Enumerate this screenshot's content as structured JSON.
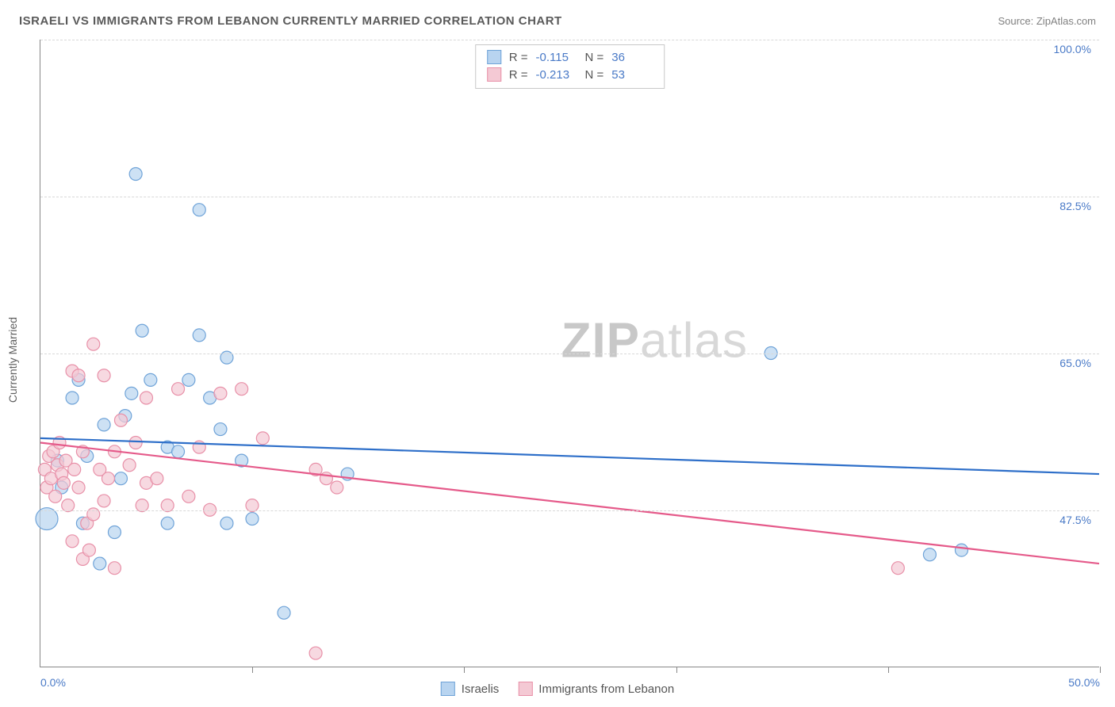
{
  "header": {
    "title": "ISRAELI VS IMMIGRANTS FROM LEBANON CURRENTLY MARRIED CORRELATION CHART",
    "source": "Source: ZipAtlas.com"
  },
  "watermark": {
    "prefix": "ZIP",
    "suffix": "atlas"
  },
  "chart": {
    "type": "scatter",
    "ylabel": "Currently Married",
    "background_color": "#ffffff",
    "grid_color": "#d8d8d8",
    "axis_color": "#888888",
    "tick_label_color": "#4a7ac7",
    "xlim": [
      0,
      50
    ],
    "ylim": [
      30,
      100
    ],
    "x_ticks": [
      0,
      10,
      20,
      30,
      40,
      50
    ],
    "x_tick_labels": [
      "0.0%",
      "",
      "",
      "",
      "",
      "50.0%"
    ],
    "y_gridlines": [
      47.5,
      65.0,
      82.5,
      100.0
    ],
    "y_tick_labels": [
      "47.5%",
      "65.0%",
      "82.5%",
      "100.0%"
    ],
    "series": [
      {
        "name": "Israelis",
        "color_fill": "#b8d4f0",
        "color_stroke": "#6fa3d8",
        "marker_radius": 8,
        "marker_opacity": 0.7,
        "R": "-0.115",
        "N": "36",
        "trendline": {
          "x1": 0,
          "y1": 55.5,
          "x2": 50,
          "y2": 51.5,
          "color": "#2e6fc9",
          "width": 2.2
        },
        "points": [
          {
            "x": 0.3,
            "y": 46.5,
            "r": 14
          },
          {
            "x": 0.8,
            "y": 53.0
          },
          {
            "x": 1.0,
            "y": 50.0
          },
          {
            "x": 1.5,
            "y": 60.0
          },
          {
            "x": 1.8,
            "y": 62.0
          },
          {
            "x": 2.0,
            "y": 46.0
          },
          {
            "x": 2.2,
            "y": 53.5
          },
          {
            "x": 2.8,
            "y": 41.5
          },
          {
            "x": 3.0,
            "y": 57.0
          },
          {
            "x": 3.5,
            "y": 45.0
          },
          {
            "x": 3.8,
            "y": 51.0
          },
          {
            "x": 4.0,
            "y": 58.0
          },
          {
            "x": 4.3,
            "y": 60.5
          },
          {
            "x": 4.5,
            "y": 85.0
          },
          {
            "x": 4.8,
            "y": 67.5
          },
          {
            "x": 5.2,
            "y": 62.0
          },
          {
            "x": 6.0,
            "y": 54.5
          },
          {
            "x": 6.0,
            "y": 46.0
          },
          {
            "x": 6.5,
            "y": 54.0
          },
          {
            "x": 7.0,
            "y": 62.0
          },
          {
            "x": 7.5,
            "y": 81.0
          },
          {
            "x": 7.5,
            "y": 67.0
          },
          {
            "x": 8.0,
            "y": 60.0
          },
          {
            "x": 8.5,
            "y": 56.5
          },
          {
            "x": 8.8,
            "y": 64.5
          },
          {
            "x": 8.8,
            "y": 46.0
          },
          {
            "x": 9.5,
            "y": 53.0
          },
          {
            "x": 10.0,
            "y": 46.5
          },
          {
            "x": 11.5,
            "y": 36.0
          },
          {
            "x": 14.5,
            "y": 51.5
          },
          {
            "x": 34.5,
            "y": 65.0
          },
          {
            "x": 42.0,
            "y": 42.5
          },
          {
            "x": 43.5,
            "y": 43.0
          }
        ]
      },
      {
        "name": "Immigrants from Lebanon",
        "color_fill": "#f4c9d4",
        "color_stroke": "#e890a8",
        "marker_radius": 8,
        "marker_opacity": 0.7,
        "R": "-0.213",
        "N": "53",
        "trendline": {
          "x1": 0,
          "y1": 55.0,
          "x2": 50,
          "y2": 41.5,
          "color": "#e55a8a",
          "width": 2.2
        },
        "points": [
          {
            "x": 0.2,
            "y": 52.0
          },
          {
            "x": 0.3,
            "y": 50.0
          },
          {
            "x": 0.4,
            "y": 53.5
          },
          {
            "x": 0.5,
            "y": 51.0
          },
          {
            "x": 0.6,
            "y": 54.0
          },
          {
            "x": 0.7,
            "y": 49.0
          },
          {
            "x": 0.8,
            "y": 52.5
          },
          {
            "x": 0.9,
            "y": 55.0
          },
          {
            "x": 1.0,
            "y": 51.5
          },
          {
            "x": 1.1,
            "y": 50.5
          },
          {
            "x": 1.2,
            "y": 53.0
          },
          {
            "x": 1.3,
            "y": 48.0
          },
          {
            "x": 1.5,
            "y": 63.0
          },
          {
            "x": 1.5,
            "y": 44.0
          },
          {
            "x": 1.6,
            "y": 52.0
          },
          {
            "x": 1.8,
            "y": 62.5
          },
          {
            "x": 1.8,
            "y": 50.0
          },
          {
            "x": 2.0,
            "y": 42.0
          },
          {
            "x": 2.0,
            "y": 54.0
          },
          {
            "x": 2.2,
            "y": 46.0
          },
          {
            "x": 2.3,
            "y": 43.0
          },
          {
            "x": 2.5,
            "y": 47.0
          },
          {
            "x": 2.5,
            "y": 66.0
          },
          {
            "x": 2.8,
            "y": 52.0
          },
          {
            "x": 3.0,
            "y": 62.5
          },
          {
            "x": 3.0,
            "y": 48.5
          },
          {
            "x": 3.2,
            "y": 51.0
          },
          {
            "x": 3.5,
            "y": 54.0
          },
          {
            "x": 3.5,
            "y": 41.0
          },
          {
            "x": 3.8,
            "y": 57.5
          },
          {
            "x": 4.2,
            "y": 52.5
          },
          {
            "x": 4.5,
            "y": 55.0
          },
          {
            "x": 4.8,
            "y": 48.0
          },
          {
            "x": 5.0,
            "y": 60.0
          },
          {
            "x": 5.0,
            "y": 50.5
          },
          {
            "x": 5.5,
            "y": 51.0
          },
          {
            "x": 6.0,
            "y": 48.0
          },
          {
            "x": 6.5,
            "y": 61.0
          },
          {
            "x": 7.0,
            "y": 49.0
          },
          {
            "x": 7.5,
            "y": 54.5
          },
          {
            "x": 8.0,
            "y": 47.5
          },
          {
            "x": 8.5,
            "y": 60.5
          },
          {
            "x": 9.5,
            "y": 61.0
          },
          {
            "x": 10.0,
            "y": 48.0
          },
          {
            "x": 10.5,
            "y": 55.5
          },
          {
            "x": 13.0,
            "y": 52.0
          },
          {
            "x": 13.0,
            "y": 31.5
          },
          {
            "x": 13.5,
            "y": 51.0
          },
          {
            "x": 14.0,
            "y": 50.0
          },
          {
            "x": 40.5,
            "y": 41.0
          }
        ]
      }
    ]
  }
}
